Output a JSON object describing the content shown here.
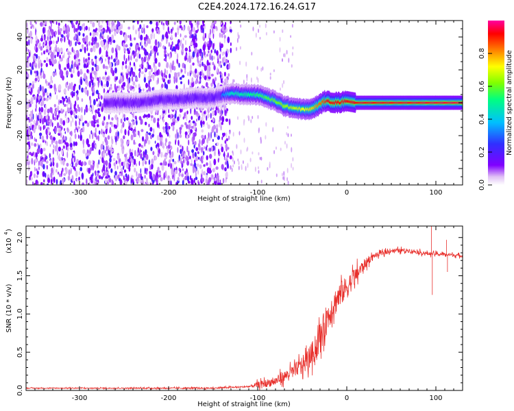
{
  "title": "C2E4.2024.172.16.24.G17",
  "chart_data": [
    {
      "type": "heatmap",
      "xlabel": "Height of straight line (km)",
      "ylabel": "Frequency (Hz)",
      "xlim": [
        -360,
        130
      ],
      "ylim": [
        -50,
        50
      ],
      "xticks": [
        -300,
        -200,
        -100,
        0,
        100
      ],
      "yticks": [
        -40,
        -20,
        0,
        20,
        40
      ],
      "colorbar": {
        "label": "Normalized spectral amplitude",
        "range": [
          0.0,
          1.0
        ],
        "ticks": [
          0.0,
          0.2,
          0.4,
          0.6,
          0.8
        ],
        "colormap": [
          "#ffffff",
          "#d9b3f5",
          "#8000ff",
          "#3030ff",
          "#00c0ff",
          "#00ff80",
          "#80ff00",
          "#ffff00",
          "#ff8000",
          "#ff0000",
          "#ff00a0"
        ]
      },
      "noise_region": {
        "x": [
          -360,
          -130
        ],
        "amplitude": 0.2,
        "sparse_until": -60
      },
      "signal_track": {
        "points": [
          [
            -270,
            0
          ],
          [
            -250,
            0
          ],
          [
            -230,
            0
          ],
          [
            -210,
            2
          ],
          [
            -190,
            2
          ],
          [
            -170,
            3
          ],
          [
            -150,
            3
          ],
          [
            -130,
            6
          ],
          [
            -120,
            5
          ],
          [
            -100,
            5
          ],
          [
            -90,
            3
          ],
          [
            -80,
            1
          ],
          [
            -70,
            -2
          ],
          [
            -60,
            -3
          ],
          [
            -50,
            -4
          ],
          [
            -40,
            -4
          ],
          [
            -30,
            -1
          ],
          [
            -25,
            1
          ],
          [
            -10,
            0
          ],
          [
            0,
            1
          ],
          [
            10,
            0
          ],
          [
            130,
            0
          ]
        ],
        "amplitude": [
          [
            -270,
            0.25
          ],
          [
            -140,
            0.3
          ],
          [
            -130,
            0.45
          ],
          [
            -80,
            0.6
          ],
          [
            -40,
            0.75
          ],
          [
            -20,
            0.92
          ],
          [
            130,
            0.95
          ]
        ]
      }
    },
    {
      "type": "line",
      "xlabel": "Height of straight line (km)",
      "ylabel": "SNR (10 * v/v)",
      "yscale_label": "(x10",
      "yscale_exp": "4",
      "yscale_close": ")",
      "xlim": [
        -360,
        130
      ],
      "ylim": [
        0,
        2.15
      ],
      "xticks": [
        -300,
        -200,
        -100,
        0,
        100
      ],
      "yticks": [
        0.0,
        0.5,
        1.0,
        1.5,
        2.0
      ],
      "color": "#e8302c",
      "trend": [
        [
          -360,
          0.03
        ],
        [
          -150,
          0.03
        ],
        [
          -110,
          0.05
        ],
        [
          -80,
          0.12
        ],
        [
          -60,
          0.25
        ],
        [
          -45,
          0.38
        ],
        [
          -35,
          0.55
        ],
        [
          -28,
          0.75
        ],
        [
          -22,
          0.95
        ],
        [
          -15,
          1.12
        ],
        [
          -8,
          1.25
        ],
        [
          0,
          1.35
        ],
        [
          10,
          1.5
        ],
        [
          20,
          1.65
        ],
        [
          30,
          1.76
        ],
        [
          50,
          1.83
        ],
        [
          70,
          1.83
        ],
        [
          90,
          1.79
        ],
        [
          110,
          1.78
        ],
        [
          130,
          1.76
        ]
      ],
      "noise_amp": [
        [
          -360,
          0.01
        ],
        [
          -110,
          0.02
        ],
        [
          -100,
          0.08
        ],
        [
          -60,
          0.16
        ],
        [
          -40,
          0.3
        ],
        [
          -25,
          0.4
        ],
        [
          -10,
          0.35
        ],
        [
          10,
          0.22
        ],
        [
          30,
          0.06
        ],
        [
          130,
          0.04
        ]
      ],
      "spikes": [
        [
          95,
          2.15
        ],
        [
          96,
          1.25
        ],
        [
          112,
          1.97
        ],
        [
          113,
          1.55
        ]
      ]
    }
  ]
}
